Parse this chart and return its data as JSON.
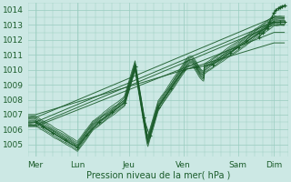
{
  "title": "",
  "xlabel": "Pression niveau de la mer( hPa )",
  "ylabel": "",
  "ylim": [
    1004.2,
    1014.5
  ],
  "yticks": [
    1005,
    1006,
    1007,
    1008,
    1009,
    1010,
    1011,
    1012,
    1013,
    1014
  ],
  "xlim": [
    0.0,
    6.2
  ],
  "xtick_positions": [
    0.18,
    1.18,
    2.4,
    3.7,
    5.0,
    5.85
  ],
  "xtick_labels": [
    "Mer",
    "Lun",
    "Jeu",
    "Ven",
    "Sam",
    "Dim"
  ],
  "bg_color": "#cce8e4",
  "grid_color": "#99ccbf",
  "line_color": "#1a5c2a",
  "marker_color": "#1a5c2a"
}
